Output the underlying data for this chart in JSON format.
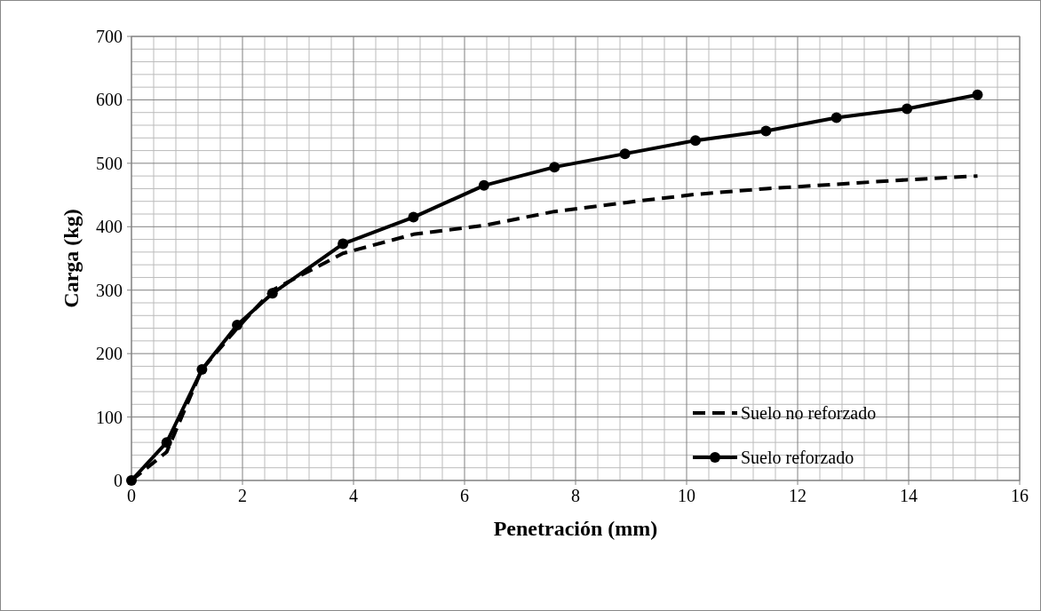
{
  "chart_data": {
    "type": "line",
    "xlabel": "Penetración (mm)",
    "ylabel": "Carga (kg)",
    "xlim": [
      0,
      16
    ],
    "xticks": [
      0,
      2,
      4,
      6,
      8,
      10,
      12,
      14,
      16
    ],
    "ylim": [
      0,
      700
    ],
    "yticks": [
      0,
      100,
      200,
      300,
      400,
      500,
      600,
      700
    ],
    "grid": true,
    "legend": "bottom right",
    "series": [
      {
        "name": "Suelo no reforzado",
        "color": "#000000",
        "line_style": "dashed",
        "marker": "none",
        "x": [
          0,
          0.635,
          1.27,
          1.905,
          2.54,
          3.81,
          5.08,
          6.35,
          7.62,
          8.89,
          10.16,
          11.43,
          12.7,
          13.97,
          15.24
        ],
        "values": [
          0,
          45,
          175,
          240,
          300,
          358,
          388,
          402,
          424,
          438,
          451,
          460,
          467,
          474,
          480
        ]
      },
      {
        "name": "Suelo reforzado",
        "color": "#000000",
        "line_style": "solid",
        "marker": "circle",
        "x": [
          0,
          0.635,
          1.27,
          1.905,
          2.54,
          3.81,
          5.08,
          6.35,
          7.62,
          8.89,
          10.16,
          11.43,
          12.7,
          13.97,
          15.24
        ],
        "values": [
          0,
          60,
          175,
          245,
          295,
          373,
          415,
          465,
          494,
          515,
          536,
          551,
          572,
          586,
          608
        ]
      }
    ]
  }
}
